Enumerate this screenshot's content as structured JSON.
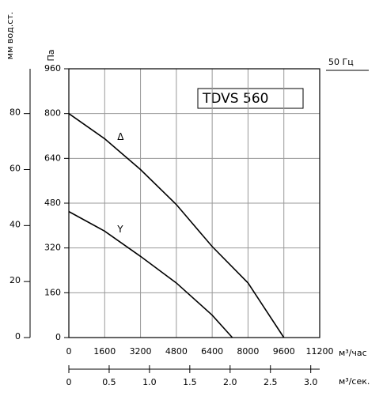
{
  "chart_data": {
    "type": "line",
    "title": "TDVS 560",
    "subtitle": "50 Гц",
    "y_label": "Па",
    "y2_label": "мм вод.ст.",
    "x_label": "м³/час",
    "x2_label": "м³/сек.",
    "xlim": [
      0,
      11200
    ],
    "xticks": [
      0,
      1600,
      3200,
      4800,
      6400,
      8000,
      9600,
      11200
    ],
    "ylim": [
      0,
      960
    ],
    "yticks": [
      0,
      160,
      320,
      480,
      640,
      800,
      960
    ],
    "y2lim": [
      0,
      96
    ],
    "y2ticks": [
      0,
      20,
      40,
      60,
      80
    ],
    "x2lim": [
      0,
      3.111
    ],
    "x2ticks": [
      0,
      0.5,
      {
        "value": 1,
        "label": "1.0"
      },
      1.5,
      {
        "value": 2,
        "label": "2.0"
      },
      2.5,
      {
        "value": 3,
        "label": "3.0"
      }
    ],
    "grid": true,
    "series": [
      {
        "name": "Δ",
        "color": "#000000",
        "x": [
          0,
          1600,
          3200,
          4800,
          6400,
          8000,
          9600
        ],
        "values": [
          800,
          710,
          600,
          475,
          325,
          195,
          0
        ]
      },
      {
        "name": "Y",
        "color": "#000000",
        "x": [
          0,
          1600,
          3200,
          4800,
          6400,
          7300
        ],
        "values": [
          450,
          380,
          290,
          195,
          80,
          0
        ]
      }
    ]
  }
}
